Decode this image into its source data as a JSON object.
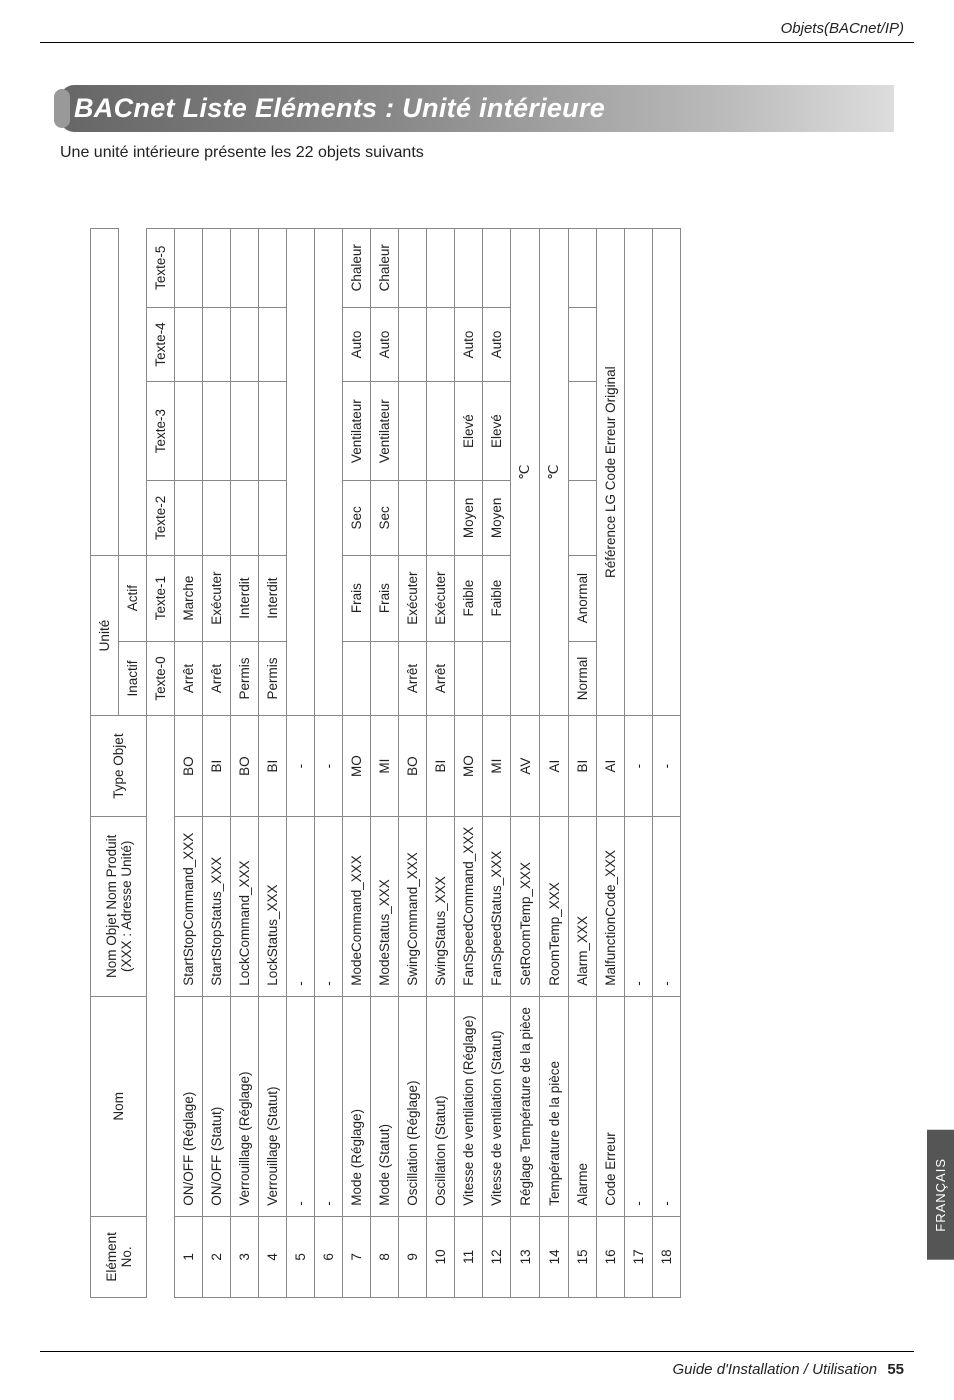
{
  "page": {
    "header_text": "Objets(BACnet/IP)",
    "title": "BACnet Liste Eléments : Unité intérieure",
    "subtitle": "Une unité intérieure présente les 22 objets suivants",
    "side_tab": "FRANÇAIS",
    "footer_text": "Guide d'Installation / Utilisation",
    "page_number": "55"
  },
  "table": {
    "head": {
      "element": "Elément",
      "no": "No.",
      "nom": "Nom",
      "nom_objet": "Nom Objet Nom Produit",
      "nom_objet_sub": "(XXX : Adresse Unité)",
      "type_objet": "Type Objet",
      "unite": "Unité",
      "inactif": "Inactif",
      "actif": "Actif",
      "t0": "Texte-0",
      "t1": "Texte-1",
      "t2": "Texte-2",
      "t3": "Texte-3",
      "t4": "Texte-4",
      "t5": "Texte-5"
    },
    "rows": [
      {
        "no": "1",
        "nom": "ON/OFF (Réglage)",
        "obj": "StartStopCommand_XXX",
        "type": "BO",
        "u0": "Arrêt",
        "u1": "Marche"
      },
      {
        "no": "2",
        "nom": "ON/OFF (Statut)",
        "obj": "StartStopStatus_XXX",
        "type": "BI",
        "u0": "Arrêt",
        "u1": "Exécuter"
      },
      {
        "no": "3",
        "nom": "Verrouillage (Réglage)",
        "obj": "LockCommand_XXX",
        "type": "BO",
        "u0": "Permis",
        "u1": "Interdit"
      },
      {
        "no": "4",
        "nom": "Verrouillage (Statut)",
        "obj": "LockStatus_XXX",
        "type": "BI",
        "u0": "Permis",
        "u1": "Interdit"
      },
      {
        "no": "5",
        "nom": "-",
        "obj": "-",
        "type": "-",
        "blank": true
      },
      {
        "no": "6",
        "nom": "-",
        "obj": "-",
        "type": "-",
        "blank": true
      },
      {
        "no": "7",
        "nom": "Mode (Réglage)",
        "obj": "ModeCommand_XXX",
        "type": "MO",
        "m": [
          "Frais",
          "Sec",
          "Ventilateur",
          "Auto",
          "Chaleur"
        ]
      },
      {
        "no": "8",
        "nom": "Mode (Statut)",
        "obj": "ModeStatus_XXX",
        "type": "MI",
        "m": [
          "Frais",
          "Sec",
          "Ventilateur",
          "Auto",
          "Chaleur"
        ]
      },
      {
        "no": "9",
        "nom": "Oscillation (Réglage)",
        "obj": "SwingCommand_XXX",
        "type": "BO",
        "u0": "Arrêt",
        "u1": "Exécuter"
      },
      {
        "no": "10",
        "nom": "Oscillation (Statut)",
        "obj": "SwingStatus_XXX",
        "type": "BI",
        "u0": "Arrêt",
        "u1": "Exécuter"
      },
      {
        "no": "11",
        "nom": "Vitesse de ventilation (Réglage)",
        "obj": "FanSpeedCommand_XXX",
        "type": "MO",
        "m": [
          "Faible",
          "Moyen",
          "Elevé",
          "Auto",
          ""
        ]
      },
      {
        "no": "12",
        "nom": "Vitesse de ventilation (Statut)",
        "obj": "FanSpeedStatus_XXX",
        "type": "MI",
        "m": [
          "Faible",
          "Moyen",
          "Elevé",
          "Auto",
          ""
        ]
      },
      {
        "no": "13",
        "nom": "Réglage Température de la pièce",
        "obj": "SetRoomTemp_XXX",
        "type": "AV",
        "unit": "℃"
      },
      {
        "no": "14",
        "nom": "Température de la pièce",
        "obj": "RoomTemp_XXX",
        "type": "AI",
        "unit": "℃"
      },
      {
        "no": "15",
        "nom": "Alarme",
        "obj": "Alarm_XXX",
        "type": "BI",
        "u0": "Normal",
        "u1": "Anormal"
      },
      {
        "no": "16",
        "nom": "Code Erreur",
        "obj": "MalfunctionCode_XXX",
        "type": "AI",
        "unit": "Référence LG Code Erreur Original"
      },
      {
        "no": "17",
        "nom": "-",
        "obj": "-",
        "type": "-",
        "blank": true
      },
      {
        "no": "18",
        "nom": "-",
        "obj": "-",
        "type": "-",
        "blank": true
      }
    ]
  }
}
